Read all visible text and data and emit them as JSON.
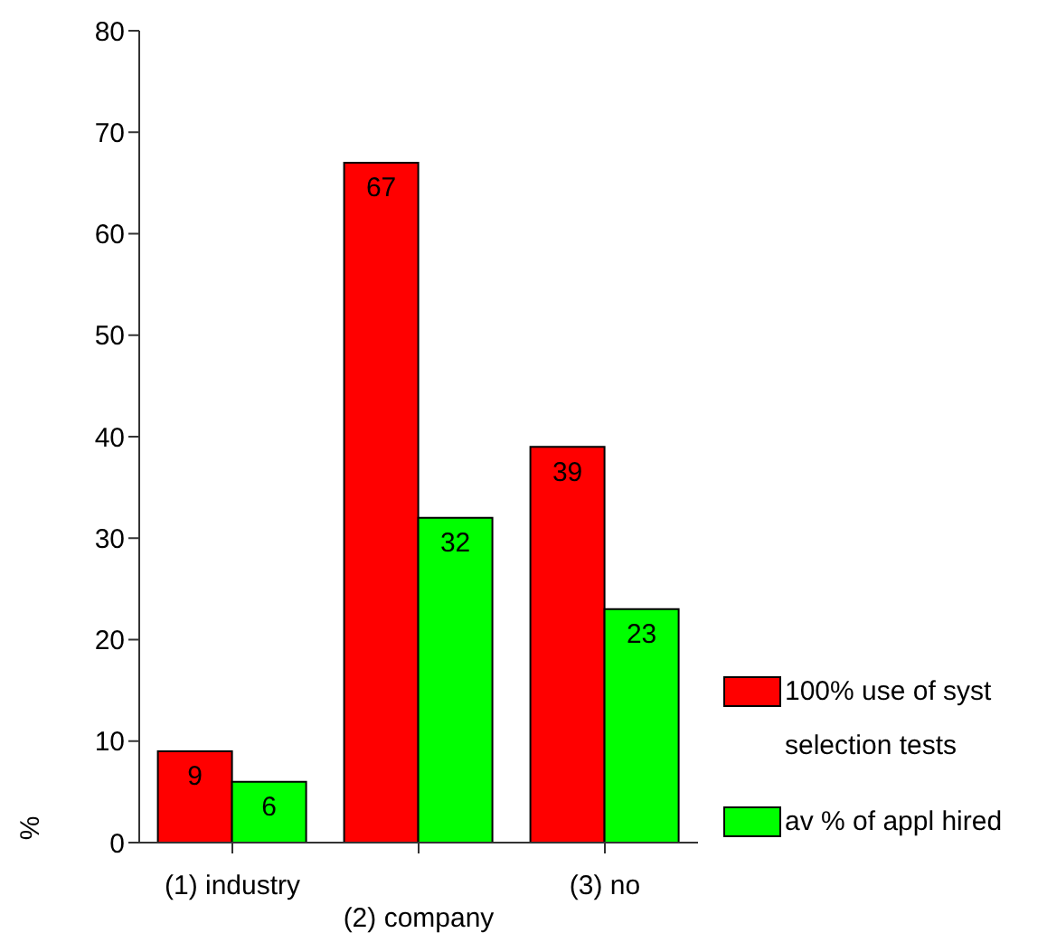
{
  "chart_data": {
    "type": "bar",
    "ylabel": "%",
    "categories": [
      "(1) industry",
      "(2) company",
      "(3) no"
    ],
    "series": [
      {
        "name": "100% use of syst selection tests",
        "color": "#ff0000",
        "values": [
          9,
          67,
          39
        ]
      },
      {
        "name": "av % of appl hired",
        "color": "#00ff00",
        "values": [
          6,
          32,
          23
        ]
      }
    ],
    "ylim": [
      0,
      80
    ],
    "yticks": [
      0,
      10,
      20,
      30,
      40,
      50,
      60,
      70,
      80
    ],
    "data_labels": true,
    "legend": "right"
  }
}
